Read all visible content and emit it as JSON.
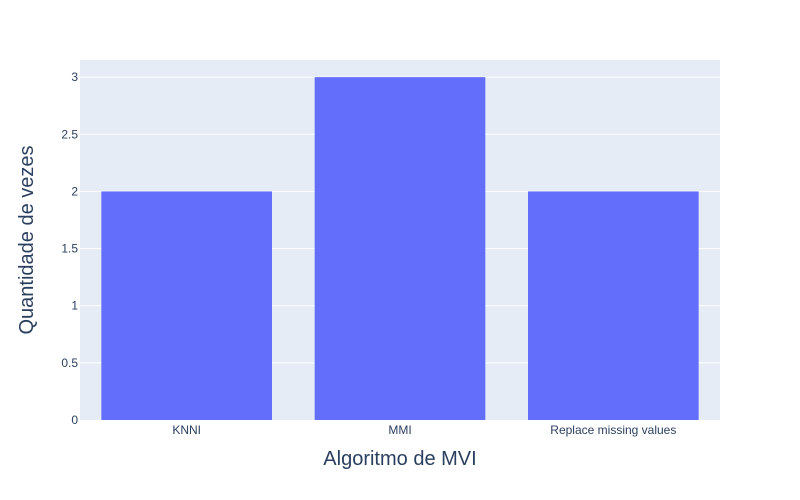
{
  "chart_data": {
    "type": "bar",
    "categories": [
      "KNNI",
      "MMI",
      "Replace missing values"
    ],
    "values": [
      2,
      3,
      2
    ],
    "title": "",
    "xlabel": "Algoritmo de MVI",
    "ylabel": "Quantidade de vezes",
    "ylim": [
      0,
      3.15
    ],
    "yticks": [
      0,
      0.5,
      1,
      1.5,
      2,
      2.5,
      3
    ],
    "ytick_labels": [
      "0",
      "0.5",
      "1",
      "1.5",
      "2",
      "2.5",
      "3"
    ],
    "grid": true,
    "legend": "none",
    "colors": {
      "bar": "#636efa",
      "plot_background": "#e5ecf6",
      "grid": "#ffffff",
      "text": "#2a3f5f"
    }
  }
}
